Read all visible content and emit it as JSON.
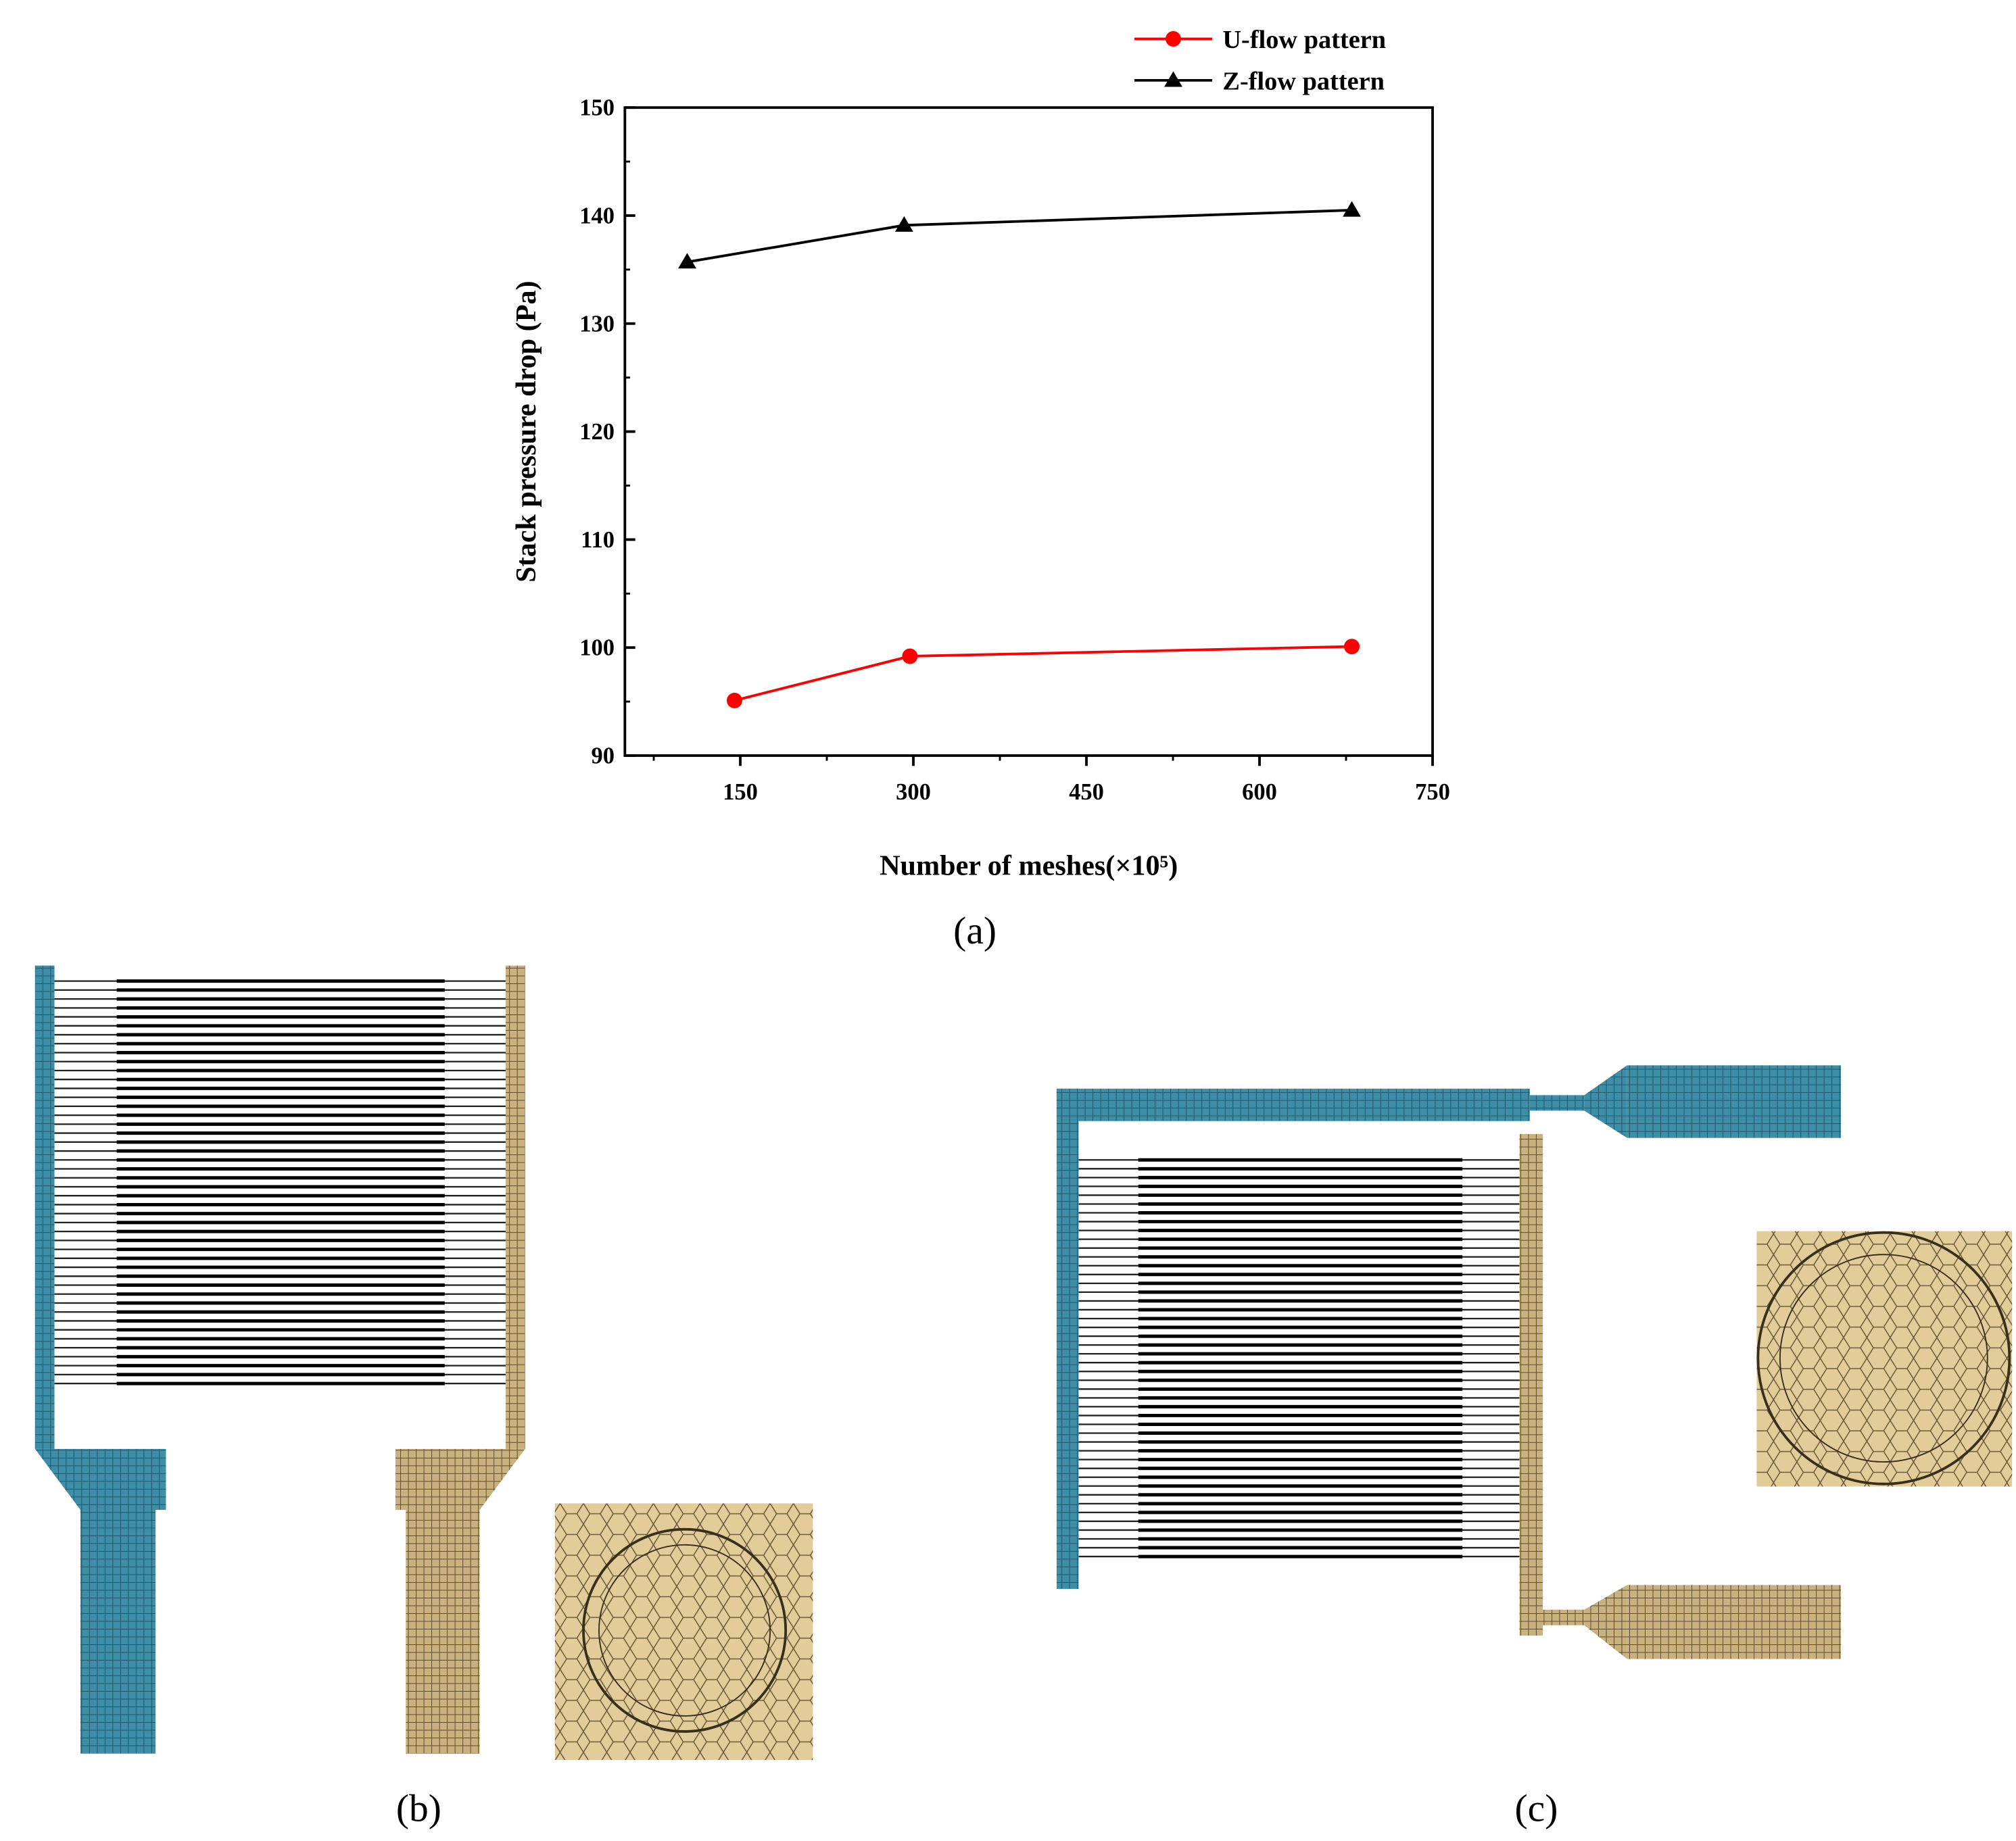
{
  "chart_data": {
    "type": "line",
    "x_label": "Number of meshes(×10⁵)",
    "y_label": "Stack pressure drop (Pa)",
    "xlim": [
      50,
      750
    ],
    "xticks": [
      150,
      300,
      450,
      600,
      750
    ],
    "xminorticks": [
      75,
      225,
      375,
      525,
      675
    ],
    "ylim": [
      90,
      150
    ],
    "yticks": [
      90,
      100,
      110,
      120,
      130,
      140,
      150
    ],
    "yminorticks": [
      95,
      105,
      115,
      125,
      135,
      145
    ],
    "legend": "top-right",
    "series": [
      {
        "name": "U-flow pattern",
        "color": "#ff0000",
        "marker": "circle",
        "x": [
          145,
          297,
          680
        ],
        "values": [
          95.1,
          99.2,
          100.1
        ]
      },
      {
        "name": "Z-flow pattern",
        "color": "#000000",
        "marker": "triangle",
        "x": [
          104,
          292,
          680
        ],
        "values": [
          135.7,
          139.1,
          140.5
        ]
      }
    ]
  },
  "panel_labels": [
    "(a)",
    "(b)",
    "(c)"
  ]
}
